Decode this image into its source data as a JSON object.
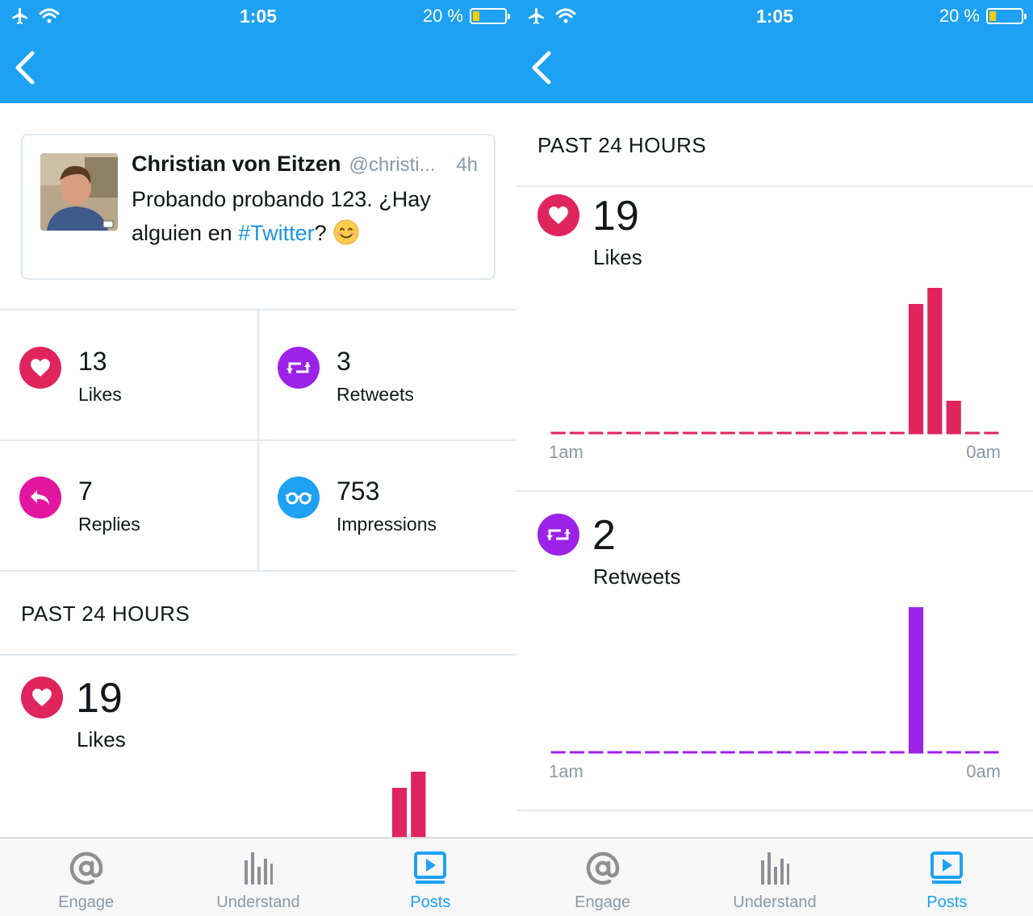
{
  "status": {
    "time": "1:05",
    "battery_text": "20 %",
    "battery_level": 0.2
  },
  "colors": {
    "twitter_blue": "#1da1f2",
    "likes": "#e0245e",
    "retweets": "#9d22e8",
    "replies": "#e2169f",
    "impressions": "#1da1f2",
    "link": "#1b95e0"
  },
  "tweet": {
    "author": "Christian von Eitzen",
    "handle": "@christi...",
    "time": "4h",
    "text_before": "Probando probando 123. ¿Hay alguien en ",
    "hashtag": "#Twitter",
    "text_after": "?",
    "emoji": "smiling-face-emoji"
  },
  "metrics": [
    {
      "value": "13",
      "label": "Likes",
      "icon": "heart-icon"
    },
    {
      "value": "3",
      "label": "Retweets",
      "icon": "retweet-icon"
    },
    {
      "value": "7",
      "label": "Replies",
      "icon": "reply-icon"
    },
    {
      "value": "753",
      "label": "Impressions",
      "icon": "glasses-icon"
    }
  ],
  "past24": {
    "title": "PAST 24 HOURS",
    "likes": {
      "value": "19",
      "label": "Likes"
    },
    "retweets": {
      "value": "2",
      "label": "Retweets"
    }
  },
  "chart_data": [
    {
      "type": "bar",
      "series": [
        {
          "name": "Likes",
          "values": [
            0,
            0,
            0,
            0,
            0,
            0,
            0,
            0,
            0,
            0,
            0,
            0,
            0,
            0,
            0,
            0,
            0,
            0,
            0,
            8,
            9,
            2,
            0,
            0
          ]
        }
      ],
      "x": [
        "1am",
        "",
        "",
        "",
        "",
        "",
        "",
        "",
        "",
        "",
        "",
        "",
        "",
        "",
        "",
        "",
        "",
        "",
        "",
        "",
        "",
        "",
        "",
        "0am"
      ],
      "tick_labels": [
        "1am",
        "0am"
      ],
      "ylim": [
        0,
        9
      ],
      "color": "#e0245e",
      "baseline": "dashed"
    },
    {
      "type": "bar",
      "series": [
        {
          "name": "Retweets",
          "values": [
            0,
            0,
            0,
            0,
            0,
            0,
            0,
            0,
            0,
            0,
            0,
            0,
            0,
            0,
            0,
            0,
            0,
            0,
            0,
            2,
            0,
            0,
            0,
            0
          ]
        }
      ],
      "x": [
        "1am",
        "",
        "",
        "",
        "",
        "",
        "",
        "",
        "",
        "",
        "",
        "",
        "",
        "",
        "",
        "",
        "",
        "",
        "",
        "",
        "",
        "",
        "",
        "0am"
      ],
      "tick_labels": [
        "1am",
        "0am"
      ],
      "ylim": [
        0,
        2
      ],
      "color": "#9d22e8",
      "baseline": "dashed"
    }
  ],
  "tabs": [
    {
      "label": "Engage",
      "icon": "at-sign-icon",
      "active": false
    },
    {
      "label": "Understand",
      "icon": "bar-chart-icon",
      "active": false
    },
    {
      "label": "Posts",
      "icon": "play-icon",
      "active": true
    }
  ]
}
